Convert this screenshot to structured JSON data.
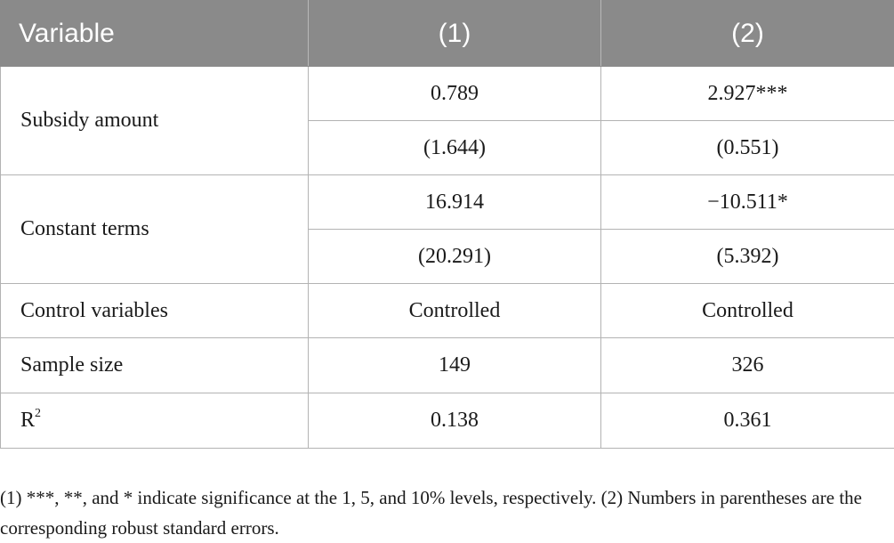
{
  "table": {
    "headers": [
      "Variable",
      "(1)",
      "(2)"
    ],
    "rows": {
      "subsidy": {
        "label": "Subsidy amount",
        "coef": [
          "0.789",
          "2.927***"
        ],
        "se": [
          "(1.644)",
          "(0.551)"
        ]
      },
      "constant": {
        "label": "Constant terms",
        "coef": [
          "16.914",
          "−10.511*"
        ],
        "se": [
          "(20.291)",
          "(5.392)"
        ]
      },
      "controls": {
        "label": "Control variables",
        "values": [
          "Controlled",
          "Controlled"
        ]
      },
      "sample": {
        "label": "Sample size",
        "values": [
          "149",
          "326"
        ]
      },
      "r2": {
        "label": "R",
        "label_superscript": "2",
        "values": [
          "0.138",
          "0.361"
        ]
      }
    }
  },
  "note": "(1) ***, **, and * indicate significance at the 1, 5, and 10% levels, respectively. (2) Numbers in parentheses are the corresponding robust standard errors."
}
